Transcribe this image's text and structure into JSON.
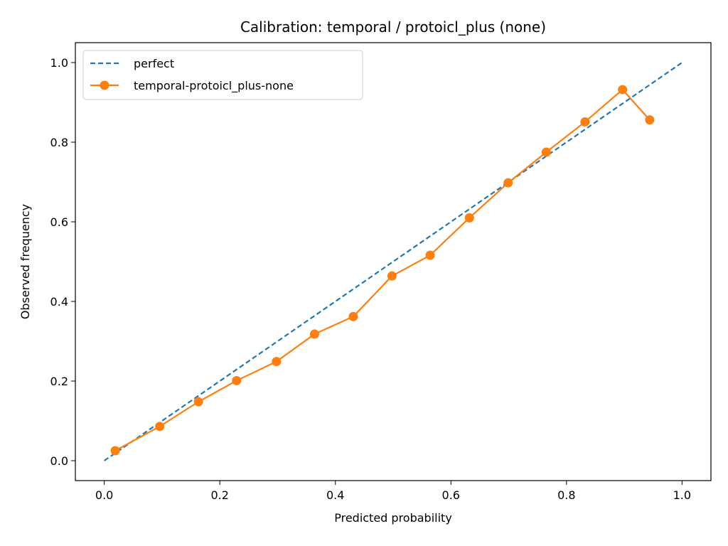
{
  "chart_data": {
    "type": "line",
    "title": "Calibration: temporal / protoicl_plus (none)",
    "xlabel": "Predicted probability",
    "ylabel": "Observed frequency",
    "xlim": [
      -0.05,
      1.05
    ],
    "ylim": [
      -0.05,
      1.05
    ],
    "x_ticks": [
      0.0,
      0.2,
      0.4,
      0.6,
      0.8,
      1.0
    ],
    "y_ticks": [
      0.0,
      0.2,
      0.4,
      0.6,
      0.8,
      1.0
    ],
    "x_tick_labels": [
      "0.0",
      "0.2",
      "0.4",
      "0.6",
      "0.8",
      "1.0"
    ],
    "y_tick_labels": [
      "0.0",
      "0.2",
      "0.4",
      "0.6",
      "0.8",
      "1.0"
    ],
    "grid": false,
    "legend_position": "upper-left",
    "series": [
      {
        "name": "perfect",
        "style": "dashed",
        "color": "#1f77b4",
        "x": [
          0.0,
          1.0
        ],
        "y": [
          0.0,
          1.0
        ]
      },
      {
        "name": "temporal-protoicl_plus-none",
        "style": "solid-markers",
        "color": "#ff7f0e",
        "x": [
          0.019,
          0.096,
          0.163,
          0.229,
          0.298,
          0.364,
          0.431,
          0.498,
          0.564,
          0.632,
          0.699,
          0.765,
          0.832,
          0.897,
          0.944
        ],
        "y": [
          0.025,
          0.086,
          0.148,
          0.201,
          0.249,
          0.318,
          0.362,
          0.464,
          0.516,
          0.61,
          0.698,
          0.775,
          0.851,
          0.932,
          0.856
        ]
      }
    ]
  }
}
